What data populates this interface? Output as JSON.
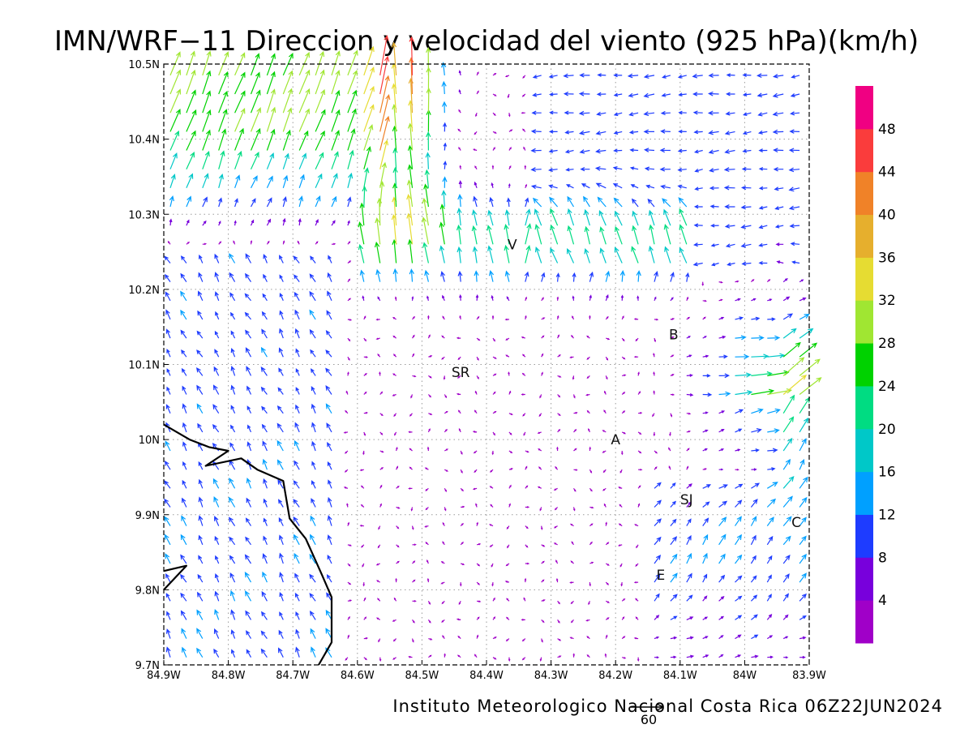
{
  "title": "IMN/WRF−11 Direccion y velocidad del viento (925 hPa)(km/h)",
  "footer": "Instituto Meteorologico Nacional Costa Rica 06Z22JUN2024",
  "reference_vector_label": "60",
  "map": {
    "lon_min": -84.9,
    "lon_max": -83.9,
    "lat_min": 9.7,
    "lat_max": 10.5,
    "lon_ticks": [
      {
        "value": -84.9,
        "label": "84.9W"
      },
      {
        "value": -84.8,
        "label": "84.8W"
      },
      {
        "value": -84.7,
        "label": "84.7W"
      },
      {
        "value": -84.6,
        "label": "84.6W"
      },
      {
        "value": -84.5,
        "label": "84.5W"
      },
      {
        "value": -84.4,
        "label": "84.4W"
      },
      {
        "value": -84.3,
        "label": "84.3W"
      },
      {
        "value": -84.2,
        "label": "84.2W"
      },
      {
        "value": -84.1,
        "label": "84.1W"
      },
      {
        "value": -84.0,
        "label": "84W"
      },
      {
        "value": -83.9,
        "label": "83.9W"
      }
    ],
    "lat_ticks": [
      {
        "value": 9.7,
        "label": "9.7N"
      },
      {
        "value": 9.8,
        "label": "9.8N"
      },
      {
        "value": 9.9,
        "label": "9.9N"
      },
      {
        "value": 10.0,
        "label": "10N"
      },
      {
        "value": 10.1,
        "label": "10.1N"
      },
      {
        "value": 10.2,
        "label": "10.2N"
      },
      {
        "value": 10.3,
        "label": "10.3N"
      },
      {
        "value": 10.4,
        "label": "10.4N"
      },
      {
        "value": 10.5,
        "label": "10.5N"
      }
    ],
    "places": [
      {
        "label": "V",
        "lon": -84.36,
        "lat": 10.26
      },
      {
        "label": "B",
        "lon": -84.11,
        "lat": 10.14
      },
      {
        "label": "SR",
        "lon": -84.44,
        "lat": 10.09
      },
      {
        "label": "A",
        "lon": -84.2,
        "lat": 10.0
      },
      {
        "label": "SJ",
        "lon": -84.09,
        "lat": 9.92
      },
      {
        "label": "C",
        "lon": -83.92,
        "lat": 9.89
      },
      {
        "label": "E",
        "lon": -84.13,
        "lat": 9.82
      }
    ],
    "coastline": [
      {
        "lon": -84.9,
        "lat": 10.02
      },
      {
        "lon": -84.86,
        "lat": 10.0
      },
      {
        "lon": -84.83,
        "lat": 9.99
      },
      {
        "lon": -84.8,
        "lat": 9.985
      },
      {
        "lon": -84.835,
        "lat": 9.965
      },
      {
        "lon": -84.78,
        "lat": 9.975
      },
      {
        "lon": -84.755,
        "lat": 9.96
      },
      {
        "lon": -84.715,
        "lat": 9.945
      },
      {
        "lon": -84.705,
        "lat": 9.895
      },
      {
        "lon": -84.68,
        "lat": 9.868
      },
      {
        "lon": -84.655,
        "lat": 9.82
      },
      {
        "lon": -84.64,
        "lat": 9.79
      },
      {
        "lon": -84.64,
        "lat": 9.73
      },
      {
        "lon": -84.66,
        "lat": 9.7
      }
    ],
    "coast_small": [
      {
        "lon": -84.9,
        "lat": 9.825
      },
      {
        "lon": -84.865,
        "lat": 9.832
      },
      {
        "lon": -84.9,
        "lat": 9.8
      }
    ]
  },
  "colorbar": {
    "levels": [
      4,
      8,
      12,
      16,
      20,
      24,
      28,
      32,
      36,
      40,
      44,
      48
    ],
    "colors": [
      "#a000c8",
      "#7800dc",
      "#1e3cff",
      "#00a0ff",
      "#00c8c8",
      "#00dc82",
      "#00d200",
      "#a0e632",
      "#e6dc32",
      "#e6af2d",
      "#f08228",
      "#fa3c3c",
      "#f00082"
    ]
  },
  "wind": {
    "units": "km/h",
    "reference_speed": 60,
    "lon_start": -84.89,
    "lon_step": 0.025,
    "lon_count": 40,
    "lat_start": 9.71,
    "lat_step": 0.025,
    "lat_count": 32
  }
}
